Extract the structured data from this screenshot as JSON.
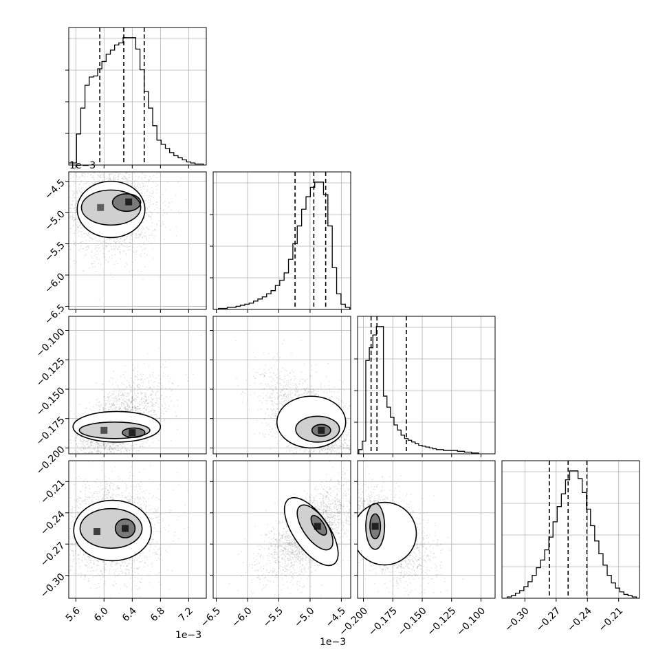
{
  "chart_data": {
    "type": "corner",
    "grid": true,
    "offsets": {
      "p0": "1e−3",
      "p1": "1e−3"
    },
    "params": [
      {
        "id": "p0",
        "range": [
          5.5,
          7.45
        ],
        "ticks": [
          5.6,
          6.0,
          6.4,
          6.8,
          7.2
        ],
        "tick_labels": [
          "5.6",
          "6.0",
          "6.4",
          "6.8",
          "7.2"
        ],
        "quantiles": [
          5.94,
          6.28,
          6.57
        ]
      },
      {
        "id": "p1",
        "range": [
          -6.55,
          -4.35
        ],
        "ticks": [
          -6.5,
          -6.0,
          -5.5,
          -5.0,
          -4.5
        ],
        "tick_labels": [
          "−6.5",
          "−6.0",
          "−5.5",
          "−5.0",
          "−4.5"
        ],
        "quantiles": [
          -5.24,
          -4.94,
          -4.75
        ]
      },
      {
        "id": "p2",
        "range": [
          -0.205,
          -0.088
        ],
        "ticks": [
          -0.2,
          -0.175,
          -0.15,
          -0.125,
          -0.1
        ],
        "tick_labels": [
          "−0.200",
          "−0.175",
          "−0.150",
          "−0.125",
          "−0.100"
        ],
        "quantiles": [
          -0.1935,
          -0.1885,
          -0.1635
        ]
      },
      {
        "id": "p3",
        "range": [
          -0.322,
          -0.19
        ],
        "ticks": [
          -0.3,
          -0.27,
          -0.24,
          -0.21
        ],
        "tick_labels": [
          "−0.30",
          "−0.27",
          "−0.24",
          "−0.21"
        ],
        "quantiles": [
          -0.2765,
          -0.2585,
          -0.2405
        ]
      }
    ],
    "histograms": [
      {
        "param": "p0",
        "x": [
          5.52,
          5.58,
          5.64,
          5.7,
          5.76,
          5.82,
          5.88,
          5.94,
          6.0,
          6.06,
          6.12,
          6.18,
          6.24,
          6.3,
          6.36,
          6.42,
          6.48,
          6.54,
          6.6,
          6.66,
          6.72,
          6.78,
          6.84,
          6.9,
          6.96,
          7.02,
          7.08,
          7.14,
          7.2,
          7.26,
          7.32,
          7.38
        ],
        "counts": [
          2,
          2,
          30,
          55,
          77,
          85,
          86,
          93,
          100,
          107,
          111,
          116,
          118,
          123,
          123,
          123,
          112,
          92,
          71,
          55,
          38,
          24,
          20,
          16,
          12,
          9,
          7,
          5,
          3,
          2,
          1,
          1
        ]
      },
      {
        "param": "p1",
        "x": [
          -6.5,
          -6.43,
          -6.36,
          -6.29,
          -6.22,
          -6.15,
          -6.08,
          -6.01,
          -5.94,
          -5.87,
          -5.8,
          -5.73,
          -5.66,
          -5.59,
          -5.52,
          -5.45,
          -5.38,
          -5.31,
          -5.24,
          -5.17,
          -5.1,
          -5.03,
          -4.96,
          -4.89,
          -4.82,
          -4.75,
          -4.68,
          -4.61,
          -4.54,
          -4.47,
          -4.4
        ],
        "counts": [
          0,
          1,
          1,
          2,
          2,
          3,
          4,
          5,
          6,
          8,
          10,
          12,
          15,
          18,
          23,
          28,
          35,
          48,
          63,
          80,
          96,
          108,
          117,
          122,
          122,
          110,
          80,
          40,
          15,
          5,
          2
        ]
      },
      {
        "param": "p2",
        "x": [
          -0.2025,
          -0.1995,
          -0.1965,
          -0.1935,
          -0.1905,
          -0.1875,
          -0.1845,
          -0.1815,
          -0.1785,
          -0.1755,
          -0.1725,
          -0.1695,
          -0.1665,
          -0.1635,
          -0.1605,
          -0.1575,
          -0.1545,
          -0.1515,
          -0.1485,
          -0.1455,
          -0.1425,
          -0.1395,
          -0.1365,
          -0.1335,
          -0.1305,
          -0.1275,
          -0.1245,
          -0.1215,
          -0.1185,
          -0.1155,
          -0.1125,
          -0.1095,
          -0.1065,
          -0.1035
        ],
        "counts": [
          5,
          15,
          110,
          125,
          140,
          150,
          150,
          68,
          55,
          43,
          34,
          28,
          22,
          18,
          16,
          14,
          12,
          10,
          9,
          8,
          7,
          6,
          5,
          5,
          4,
          4,
          4,
          4,
          3,
          3,
          2,
          2,
          1,
          1
        ]
      },
      {
        "param": "p3",
        "x": [
          -0.319,
          -0.315,
          -0.311,
          -0.307,
          -0.303,
          -0.299,
          -0.295,
          -0.291,
          -0.287,
          -0.283,
          -0.279,
          -0.275,
          -0.271,
          -0.267,
          -0.263,
          -0.259,
          -0.255,
          -0.251,
          -0.247,
          -0.243,
          -0.239,
          -0.235,
          -0.231,
          -0.227,
          -0.223,
          -0.219,
          -0.215,
          -0.211,
          -0.207,
          -0.203,
          -0.199,
          -0.195,
          -0.191
        ],
        "counts": [
          0,
          1,
          2,
          4,
          6,
          9,
          13,
          18,
          24,
          30,
          38,
          48,
          60,
          72,
          82,
          93,
          100,
          100,
          94,
          83,
          70,
          57,
          45,
          35,
          26,
          18,
          12,
          8,
          5,
          3,
          2,
          1,
          0
        ]
      }
    ],
    "pairs": [
      {
        "x": "p0",
        "y": "p1",
        "corr": 0.0,
        "modes": [
          {
            "cx": 5.95,
            "cy": -4.92,
            "sx": 0.22,
            "sy": 0.22,
            "w": 0.7
          },
          {
            "cx": 6.35,
            "cy": -4.83,
            "sx": 0.18,
            "sy": 0.18,
            "w": 1.0
          }
        ],
        "contours": [
          {
            "cx": 6.1,
            "cy": -4.95,
            "rx": 0.48,
            "ry": 0.45,
            "rot": 0
          },
          {
            "cx": 6.1,
            "cy": -4.92,
            "rx": 0.42,
            "ry": 0.28,
            "rot": 0
          },
          {
            "cx": 6.32,
            "cy": -4.84,
            "rx": 0.2,
            "ry": 0.14,
            "rot": 0
          }
        ],
        "n": 2200
      },
      {
        "x": "p0",
        "y": "p2",
        "corr": 0.6,
        "modes": [
          {
            "cx": 6.0,
            "cy": -0.185,
            "sx": 0.2,
            "sy": 0.007,
            "w": 0.8
          },
          {
            "cx": 6.4,
            "cy": -0.187,
            "sx": 0.15,
            "sy": 0.006,
            "w": 1.0
          }
        ],
        "contours": [
          {
            "cx": 6.18,
            "cy": -0.182,
            "rx": 0.62,
            "ry": 0.013,
            "rot": 0
          },
          {
            "cx": 6.15,
            "cy": -0.185,
            "rx": 0.5,
            "ry": 0.007,
            "rot": 0
          },
          {
            "cx": 6.42,
            "cy": -0.187,
            "rx": 0.16,
            "ry": 0.004,
            "rot": 0
          }
        ],
        "n": 2200
      },
      {
        "x": "p1",
        "y": "p2",
        "corr": -0.5,
        "modes": [
          {
            "cx": -4.82,
            "cy": -0.185,
            "sx": 0.2,
            "sy": 0.006,
            "w": 1.0
          }
        ],
        "contours": [
          {
            "cx": -4.98,
            "cy": -0.178,
            "rx": 0.55,
            "ry": 0.022,
            "rot": 0
          },
          {
            "cx": -4.88,
            "cy": -0.184,
            "rx": 0.35,
            "ry": 0.011,
            "rot": 0
          },
          {
            "cx": -4.82,
            "cy": -0.185,
            "rx": 0.15,
            "ry": 0.005,
            "rot": 0
          }
        ],
        "n": 2200
      },
      {
        "x": "p0",
        "y": "p3",
        "corr": 0.0,
        "modes": [
          {
            "cx": 5.9,
            "cy": -0.258,
            "sx": 0.15,
            "sy": 0.008,
            "w": 0.9
          },
          {
            "cx": 6.3,
            "cy": -0.255,
            "sx": 0.15,
            "sy": 0.008,
            "w": 1.0
          }
        ],
        "contours": [
          {
            "cx": 6.12,
            "cy": -0.257,
            "rx": 0.55,
            "ry": 0.029,
            "rot": 0
          },
          {
            "cx": 6.1,
            "cy": -0.255,
            "rx": 0.44,
            "ry": 0.019,
            "rot": 0
          },
          {
            "cx": 6.3,
            "cy": -0.255,
            "rx": 0.14,
            "ry": 0.009,
            "rot": 0
          }
        ],
        "n": 2200
      },
      {
        "x": "p1",
        "y": "p3",
        "corr": 0.65,
        "modes": [
          {
            "cx": -4.88,
            "cy": -0.253,
            "sx": 0.12,
            "sy": 0.01,
            "w": 1.0
          }
        ],
        "contours": [
          {
            "cx": -4.98,
            "cy": -0.258,
            "rx": 0.28,
            "ry": 0.038,
            "rot": -35
          },
          {
            "cx": -4.92,
            "cy": -0.254,
            "rx": 0.19,
            "ry": 0.025,
            "rot": -35
          },
          {
            "cx": -4.86,
            "cy": -0.252,
            "rx": 0.08,
            "ry": 0.011,
            "rot": -35
          }
        ],
        "n": 2200
      },
      {
        "x": "p2",
        "y": "p3",
        "corr": -0.5,
        "modes": [
          {
            "cx": -0.19,
            "cy": -0.253,
            "sx": 0.004,
            "sy": 0.01,
            "w": 1.0
          }
        ],
        "contours": [
          {
            "cx": -0.182,
            "cy": -0.26,
            "rx": 0.027,
            "ry": 0.03,
            "rot": 0
          },
          {
            "cx": -0.19,
            "cy": -0.253,
            "rx": 0.008,
            "ry": 0.022,
            "rot": 0
          },
          {
            "cx": -0.19,
            "cy": -0.253,
            "rx": 0.0045,
            "ry": 0.012,
            "rot": 0
          }
        ],
        "n": 2200
      }
    ]
  }
}
